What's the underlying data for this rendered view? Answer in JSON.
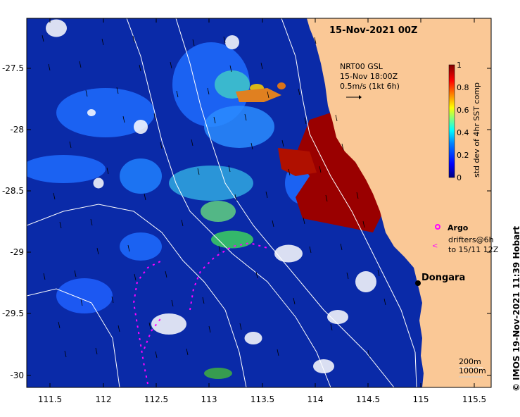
{
  "title": "15-Nov-2021 00Z",
  "info": {
    "line1": "NRT00 GSL",
    "line2": "15-Nov 18:00Z",
    "line3": "0.5m/s (1kt 6h)"
  },
  "colorbar": {
    "label": "std dev of 4hr SST comp",
    "ticks": [
      "1",
      "0.8",
      "0.6",
      "0.4",
      "0.2",
      "0"
    ],
    "colors": [
      "#00007f",
      "#0000ff",
      "#0080ff",
      "#00ffff",
      "#80ff80",
      "#ffff00",
      "#ff8000",
      "#ff0000",
      "#800000"
    ]
  },
  "legend": {
    "argo": "Argo",
    "drifters_line1": "drifters@6h",
    "drifters_line2": "to 15/11 12Z",
    "drifter_color": "#ff00ff"
  },
  "place": "Dongara",
  "scale": {
    "line1": "200m",
    "line2": "1000m"
  },
  "credit": "© IMOS 19-Nov-2021 11:39 Hobart",
  "axes": {
    "y_ticks": [
      "-27.5",
      "-28",
      "-28.5",
      "-29",
      "-29.5",
      "-30"
    ],
    "x_ticks": [
      "111.5",
      "112",
      "112.5",
      "113",
      "113.5",
      "114",
      "114.5",
      "115",
      "115.5"
    ]
  },
  "colors": {
    "land": "#fac896",
    "ocean_dark": "#00109a",
    "ocean_mid": "#1c5cff"
  }
}
